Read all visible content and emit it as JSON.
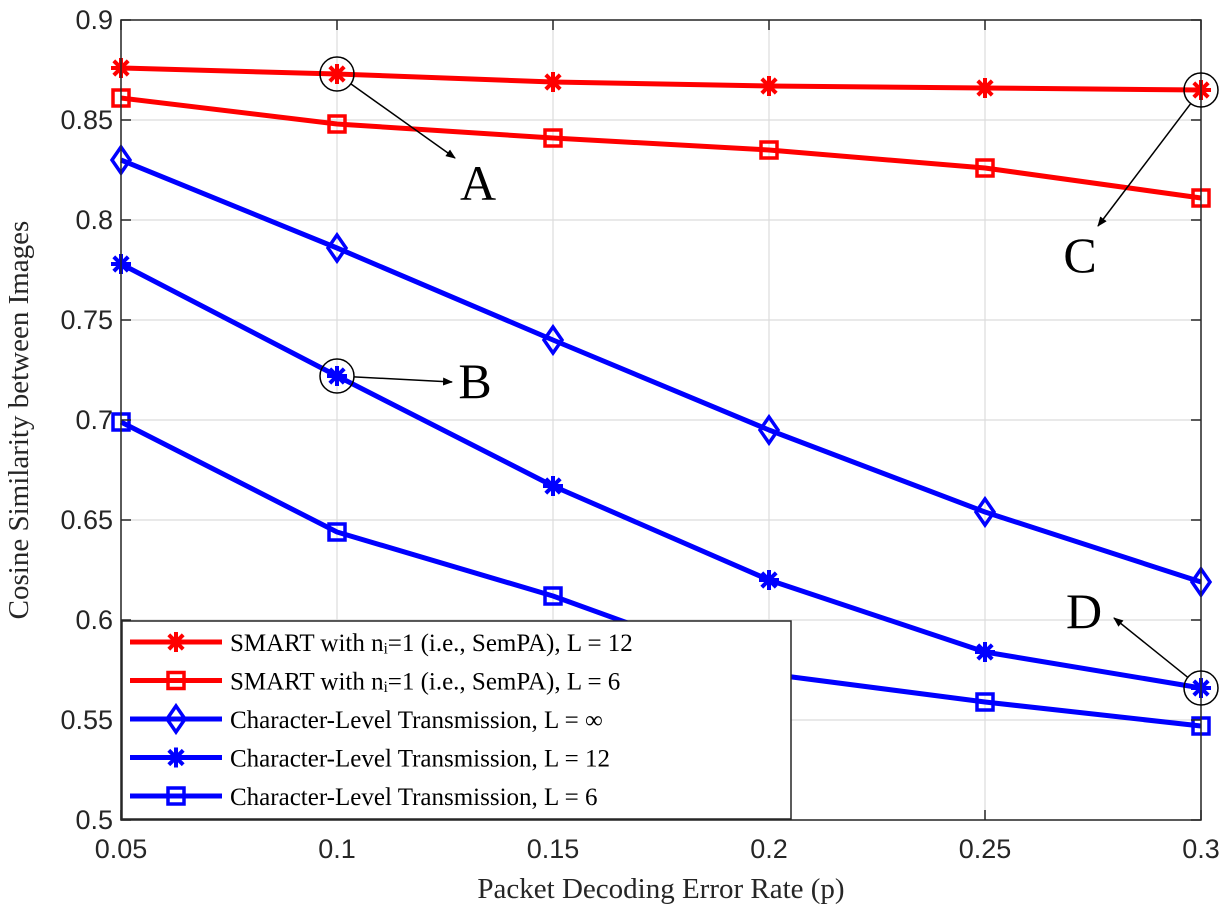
{
  "chart_data": {
    "type": "line",
    "xlabel": "Packet Decoding Error Rate (p)",
    "ylabel": "Cosine Similarity between Images",
    "xlim": [
      0.05,
      0.3
    ],
    "ylim": [
      0.5,
      0.9
    ],
    "grid": true,
    "legend_position": "bottom-left",
    "x_ticks": [
      "0.05",
      "0.1",
      "0.15",
      "0.2",
      "0.25",
      "0.3"
    ],
    "y_ticks": [
      "0.5",
      "0.55",
      "0.6",
      "0.65",
      "0.7",
      "0.75",
      "0.8",
      "0.85",
      "0.9"
    ],
    "x": [
      0.05,
      0.1,
      0.15,
      0.2,
      0.25,
      0.3
    ],
    "series": [
      {
        "name": "SMART with n_i=1 (i.e., SemPA), L = 12",
        "legend_label": "SMART with nᵢ=1 (i.e., SemPA), L = 12",
        "color": "#ff0000",
        "marker": "asterisk",
        "values": [
          0.876,
          0.873,
          0.869,
          0.867,
          0.866,
          0.865
        ]
      },
      {
        "name": "SMART with n_i=1 (i.e., SemPA), L = 6",
        "legend_label": "SMART with nᵢ=1 (i.e., SemPA), L = 6",
        "color": "#ff0000",
        "marker": "square",
        "values": [
          0.861,
          0.848,
          0.841,
          0.835,
          0.826,
          0.811
        ]
      },
      {
        "name": "Character-Level Transmission, L = ∞",
        "legend_label": "Character-Level Transmission, L = ∞",
        "color": "#0000ff",
        "marker": "diamond",
        "values": [
          0.83,
          0.786,
          0.74,
          0.695,
          0.654,
          0.619
        ]
      },
      {
        "name": "Character-Level Transmission, L = 12",
        "legend_label": "Character-Level Transmission, L = 12",
        "color": "#0000ff",
        "marker": "asterisk",
        "values": [
          0.778,
          0.722,
          0.667,
          0.62,
          0.584,
          0.566
        ]
      },
      {
        "name": "Character-Level Transmission, L = 6",
        "legend_label": "Character-Level Transmission, L = 6",
        "color": "#0000ff",
        "marker": "square",
        "values": [
          0.699,
          0.644,
          0.612,
          0.573,
          0.559,
          0.547
        ]
      }
    ],
    "annotations": [
      {
        "text": "A",
        "x": 0.1,
        "y": 0.873,
        "series": "SMART with n_i=1 (i.e., SemPA), L = 12"
      },
      {
        "text": "B",
        "x": 0.1,
        "y": 0.722,
        "series": "Character-Level Transmission, L = 12"
      },
      {
        "text": "C",
        "x": 0.3,
        "y": 0.865,
        "series": "SMART with n_i=1 (i.e., SemPA), L = 12"
      },
      {
        "text": "D",
        "x": 0.3,
        "y": 0.566,
        "series": "Character-Level Transmission, L = 12"
      }
    ]
  }
}
